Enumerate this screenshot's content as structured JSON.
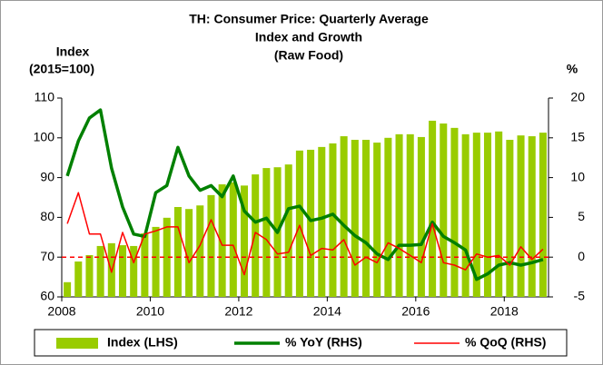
{
  "chart_data": {
    "type": "combo",
    "title": [
      "TH: Consumer Price: Quarterly Average",
      "Index and Growth",
      "(Raw Food)"
    ],
    "y_label": [
      "Index",
      "(2015=100)"
    ],
    "y2_label": "%",
    "categories": [
      "2008",
      null,
      null,
      null,
      null,
      null,
      null,
      null,
      "2010",
      null,
      null,
      null,
      null,
      null,
      null,
      null,
      "2012",
      null,
      null,
      null,
      null,
      null,
      null,
      null,
      "2014",
      null,
      null,
      null,
      null,
      null,
      null,
      null,
      "2016",
      null,
      null,
      null,
      null,
      null,
      null,
      null,
      "2018",
      null,
      null,
      null
    ],
    "ylim": [
      60,
      110
    ],
    "yticks": [
      60,
      70,
      80,
      90,
      100,
      110
    ],
    "y2lim": [
      -5,
      20
    ],
    "y2ticks": [
      -5,
      0,
      5,
      10,
      15,
      20
    ],
    "series": [
      {
        "name": "Index (LHS)",
        "type": "bar",
        "color": "#99cc00",
        "axis": "y",
        "values": [
          63.7,
          68.9,
          70.5,
          72.8,
          73.5,
          73,
          72.8,
          76,
          77.6,
          79.9,
          82.6,
          82.1,
          83,
          85.6,
          88.3,
          88.8,
          88,
          90.8,
          92.4,
          92.6,
          93.3,
          96.8,
          97,
          97.7,
          98.6,
          100.4,
          99.5,
          99.5,
          98.8,
          100,
          100.9,
          100.9,
          100.2,
          104.3,
          103.6,
          102.5,
          100.9,
          101.3,
          101.3,
          101.6,
          99.5,
          100.6,
          100.4,
          101.3
        ]
      },
      {
        "name": "% YoY (RHS)",
        "type": "line",
        "color": "#008000",
        "axis": "y2",
        "width": 3.5,
        "values": [
          10.2,
          14.6,
          17.5,
          18.5,
          11.2,
          6.3,
          2.9,
          2.6,
          8.1,
          9,
          13.8,
          10.2,
          8.4,
          9,
          7.6,
          10.2,
          5.8,
          4.4,
          4.9,
          3.1,
          6.1,
          6.4,
          4.6,
          4.9,
          5.4,
          4,
          2.7,
          1.8,
          0.4,
          -0.3,
          1.5,
          1.5,
          1.6,
          4.4,
          2.6,
          1.8,
          0.9,
          -2.8,
          -2.1,
          -1,
          -0.7,
          -1,
          -0.7,
          -0.3
        ]
      },
      {
        "name": "% QoQ (RHS)",
        "type": "line",
        "color": "#ff0000",
        "axis": "y2",
        "width": 1.5,
        "values": [
          4.2,
          8.1,
          2.9,
          2.9,
          -1.9,
          3.1,
          -0.7,
          2.9,
          3.3,
          3.8,
          3.8,
          -0.7,
          1.5,
          4.7,
          1.5,
          1.5,
          -2.2,
          3.1,
          2.2,
          0.4,
          0.6,
          4,
          0.2,
          1.1,
          0.9,
          2.2,
          -1,
          0,
          -0.7,
          1.8,
          1.1,
          0.2,
          -0.7,
          4.2,
          -0.7,
          -1,
          -1.6,
          0.4,
          0,
          0.2,
          -1,
          1.3,
          -0.3,
          1
        ]
      }
    ]
  }
}
